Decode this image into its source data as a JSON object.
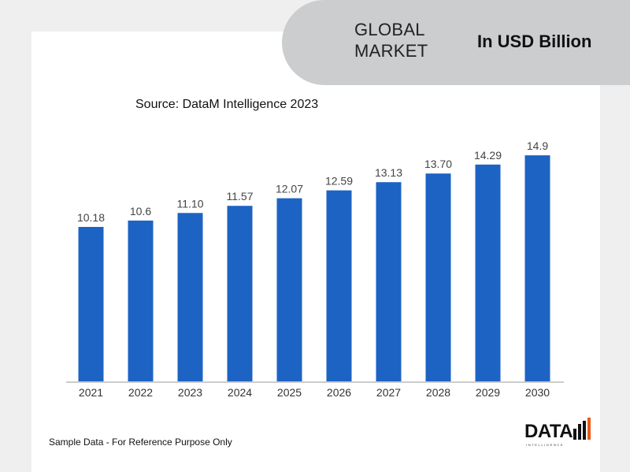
{
  "header": {
    "title": "GLOBAL\nMARKET",
    "unit": "In USD Billion"
  },
  "source": "Source: DataM Intelligence 2023",
  "footer_note": "Sample Data - For Reference Purpose Only",
  "logo": {
    "text": "DATA",
    "sub": "INTELLIGENCE"
  },
  "colors": {
    "bar": "#1d63c4",
    "axis": "#bbbbbb",
    "pill": "#cbcdcf",
    "logo_accent": "#e85a1b"
  },
  "chart_data": {
    "type": "bar",
    "categories": [
      "2021",
      "2022",
      "2023",
      "2024",
      "2025",
      "2026",
      "2027",
      "2028",
      "2029",
      "2030"
    ],
    "values": [
      10.18,
      10.6,
      11.1,
      11.57,
      12.07,
      12.59,
      13.13,
      13.7,
      14.29,
      14.9
    ],
    "data_labels": [
      "10.18",
      "10.6",
      "11.10",
      "11.57",
      "12.07",
      "12.59",
      "13.13",
      "13.70",
      "14.29",
      "14.9"
    ],
    "title": "",
    "xlabel": "",
    "ylabel": "",
    "ylim": [
      0,
      16.1
    ],
    "grid": false,
    "legend": "none"
  }
}
